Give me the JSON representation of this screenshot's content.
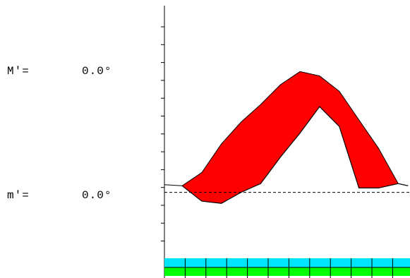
{
  "readouts": {
    "max": {
      "label": "M′=",
      "value": "0.0°"
    },
    "min": {
      "label": "m′=",
      "value": "0.0°"
    }
  },
  "colors": {
    "fill": "#ff0000",
    "axis": "#000000",
    "strip_top": "#00e5ff",
    "strip_bottom": "#00ff00"
  },
  "chart_data": {
    "type": "area",
    "title": "",
    "xlabel": "",
    "ylabel": "",
    "reference_line": "dashed zero line",
    "upper": [
      [
        0,
        -0.3
      ],
      [
        1,
        -0.9
      ],
      [
        2,
        -2.2
      ],
      [
        3,
        -3.2
      ],
      [
        4,
        -4.0
      ],
      [
        5,
        -4.9
      ],
      [
        6,
        -5.5
      ],
      [
        7,
        -5.3
      ],
      [
        8,
        -4.6
      ],
      [
        9,
        -3.3
      ],
      [
        10,
        -2.0
      ],
      [
        11,
        -0.4
      ],
      [
        11.5,
        -0.3
      ]
    ],
    "lower": [
      [
        0,
        -0.3
      ],
      [
        1,
        0.4
      ],
      [
        2,
        0.5
      ],
      [
        3,
        0.0
      ],
      [
        4,
        -0.4
      ],
      [
        5,
        -1.6
      ],
      [
        6,
        -2.7
      ],
      [
        7,
        -3.9
      ],
      [
        8,
        -3.0
      ],
      [
        9,
        -0.2
      ],
      [
        10,
        -0.2
      ],
      [
        11,
        -0.4
      ],
      [
        11.5,
        -0.3
      ]
    ],
    "xlim": [
      -0.9,
      11.6
    ],
    "ylim": [
      3.0,
      -8.5
    ]
  }
}
